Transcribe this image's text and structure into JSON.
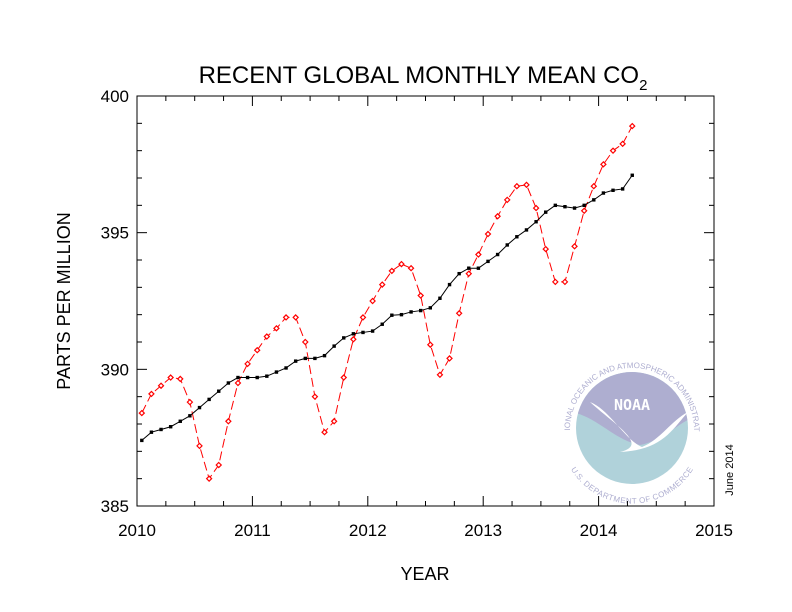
{
  "chart_data": {
    "type": "line",
    "title": "RECENT GLOBAL MONTHLY MEAN CO",
    "title_subscript": "2",
    "xlabel": "YEAR",
    "ylabel": "PARTS PER MILLION",
    "xlim": [
      2010,
      2015
    ],
    "ylim": [
      385,
      400
    ],
    "xticks": [
      "2010",
      "2011",
      "2012",
      "2013",
      "2014",
      "2015"
    ],
    "yticks": [
      "385",
      "390",
      "395",
      "400"
    ],
    "grid": false,
    "annotation": "June 2014",
    "logo": {
      "name": "NOAA",
      "ring_text_top": "NATIONAL OCEANIC AND ATMOSPHERIC ADMINISTRATION",
      "ring_text_bottom": "U.S. DEPARTMENT OF COMMERCE"
    },
    "x_start": "2010-01",
    "x_step": "monthly",
    "series": [
      {
        "color": "#ff0000",
        "style": "dashed",
        "marker": "open-diamond",
        "values": [
          388.4,
          389.1,
          389.4,
          389.7,
          389.65,
          388.8,
          387.2,
          386.0,
          386.5,
          388.1,
          389.5,
          390.2,
          390.7,
          391.2,
          391.5,
          391.9,
          391.9,
          391.0,
          389.0,
          387.7,
          388.1,
          389.7,
          391.1,
          391.9,
          392.5,
          393.1,
          393.6,
          393.85,
          393.7,
          392.7,
          390.9,
          389.8,
          390.4,
          392.05,
          393.5,
          394.2,
          394.95,
          395.6,
          396.2,
          396.7,
          396.75,
          395.9,
          394.4,
          393.2,
          393.2,
          394.5,
          395.8,
          396.7,
          397.5,
          398.0,
          398.25,
          398.9
        ]
      },
      {
        "color": "#000000",
        "style": "solid",
        "marker": "filled-square",
        "values": [
          387.4,
          387.7,
          387.8,
          387.9,
          388.1,
          388.3,
          388.6,
          388.9,
          389.2,
          389.5,
          389.7,
          389.7,
          389.7,
          389.75,
          389.9,
          390.05,
          390.3,
          390.4,
          390.4,
          390.5,
          390.85,
          391.15,
          391.3,
          391.35,
          391.4,
          391.65,
          391.98,
          392.0,
          392.1,
          392.15,
          392.25,
          392.6,
          393.1,
          393.5,
          393.7,
          393.7,
          393.95,
          394.2,
          394.55,
          394.85,
          395.1,
          395.4,
          395.75,
          396.0,
          395.95,
          395.9,
          396.0,
          396.2,
          396.45,
          396.55,
          396.6,
          397.1
        ]
      }
    ]
  }
}
